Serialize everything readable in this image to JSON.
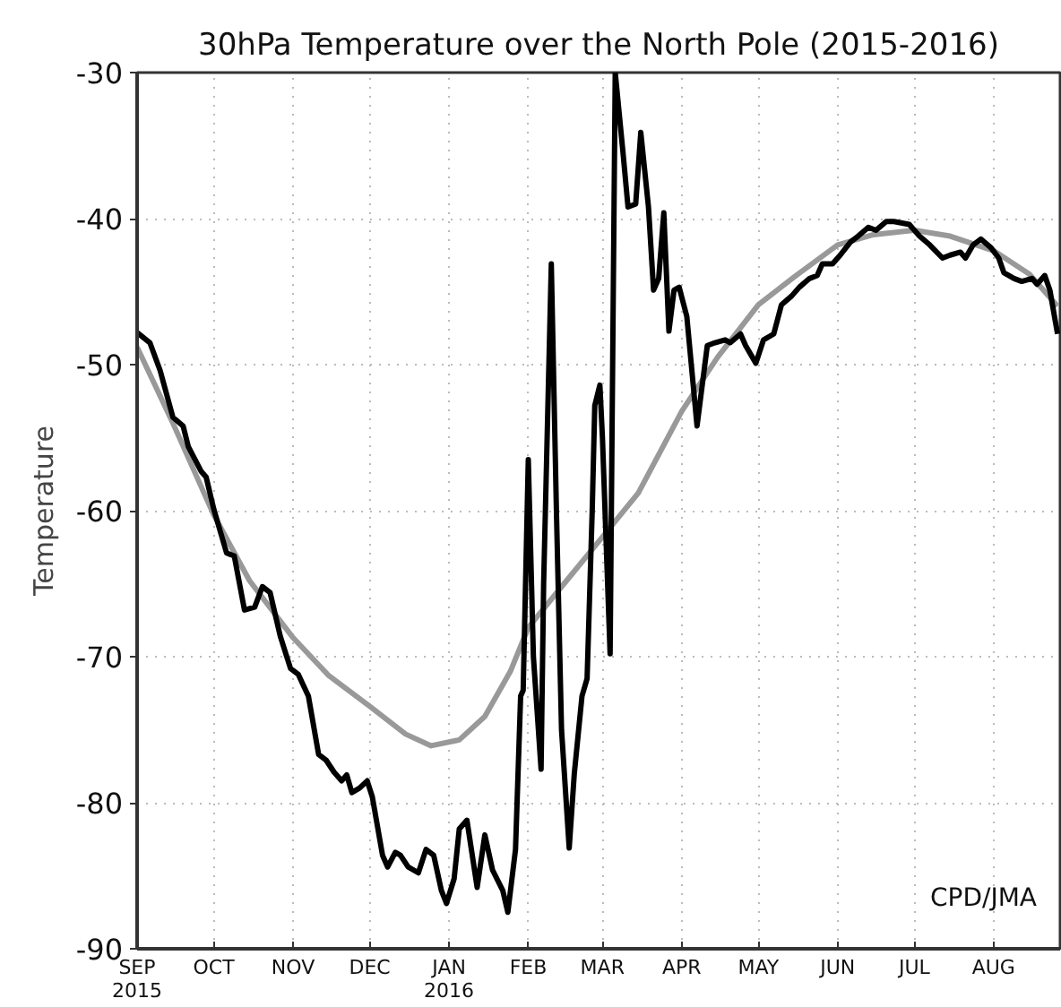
{
  "chart_data": {
    "type": "line",
    "title": "30hPa Temperature over the North Pole (2015-2016)",
    "ylabel": "Temperature",
    "annotations": [
      "CPD/JMA"
    ],
    "xlim": [
      "2015-09-01",
      "2016-08-27"
    ],
    "ylim": [
      -90,
      -30
    ],
    "yticks": [
      -90,
      -80,
      -70,
      -60,
      -50,
      -40,
      -30
    ],
    "xticks": [
      {
        "value": "2015-09-01",
        "label": "SEP\n2015"
      },
      {
        "value": "2015-10-01",
        "label": "OCT"
      },
      {
        "value": "2015-11-01",
        "label": "NOV"
      },
      {
        "value": "2015-12-01",
        "label": "DEC"
      },
      {
        "value": "2016-01-01",
        "label": "JAN\n2016"
      },
      {
        "value": "2016-02-01",
        "label": "FEB"
      },
      {
        "value": "2016-03-01",
        "label": "MAR"
      },
      {
        "value": "2016-04-01",
        "label": "APR"
      },
      {
        "value": "2016-05-01",
        "label": "MAY"
      },
      {
        "value": "2016-06-01",
        "label": "JUN"
      },
      {
        "value": "2016-07-01",
        "label": "JUL"
      },
      {
        "value": "2016-08-01",
        "label": "AUG"
      }
    ],
    "grid": true,
    "marker": "none",
    "line_style": "solid",
    "series": [
      {
        "color": "#999999",
        "x": [
          "2015-09-01",
          "2015-09-15",
          "2015-10-01",
          "2015-10-15",
          "2015-11-01",
          "2015-11-15",
          "2015-12-01",
          "2015-12-15",
          "2015-12-25",
          "2016-01-05",
          "2016-01-15",
          "2016-01-25",
          "2016-02-01",
          "2016-02-15",
          "2016-03-01",
          "2016-03-15",
          "2016-04-01",
          "2016-04-15",
          "2016-05-01",
          "2016-05-15",
          "2016-06-01",
          "2016-06-15",
          "2016-07-01",
          "2016-07-15",
          "2016-08-01",
          "2016-08-15",
          "2016-08-26"
        ],
        "values": [
          -48.8,
          -54.0,
          -60.3,
          -64.8,
          -68.7,
          -71.3,
          -73.4,
          -75.3,
          -76.1,
          -75.7,
          -74.1,
          -71.0,
          -68.0,
          -65.0,
          -61.8,
          -58.8,
          -53.2,
          -49.5,
          -45.9,
          -44.0,
          -41.8,
          -41.1,
          -40.8,
          -41.2,
          -42.2,
          -43.8,
          -46.0
        ]
      },
      {
        "color": "#000000",
        "x": [
          "2015-09-01",
          "2015-09-06",
          "2015-09-10",
          "2015-09-15",
          "2015-09-19",
          "2015-09-21",
          "2015-09-26",
          "2015-09-28",
          "2015-10-01",
          "2015-10-06",
          "2015-10-09",
          "2015-10-13",
          "2015-10-17",
          "2015-10-20",
          "2015-10-23",
          "2015-10-27",
          "2015-10-31",
          "2015-11-03",
          "2015-11-07",
          "2015-11-11",
          "2015-11-14",
          "2015-11-17",
          "2015-11-20",
          "2015-11-22",
          "2015-11-24",
          "2015-11-27",
          "2015-11-30",
          "2015-12-02",
          "2015-12-06",
          "2015-12-08",
          "2015-12-11",
          "2015-12-13",
          "2015-12-16",
          "2015-12-20",
          "2015-12-23",
          "2015-12-26",
          "2015-12-29",
          "2015-12-31",
          "2016-01-03",
          "2016-01-05",
          "2016-01-08",
          "2016-01-12",
          "2016-01-15",
          "2016-01-18",
          "2016-01-22",
          "2016-01-24",
          "2016-01-27",
          "2016-01-29",
          "2016-01-30",
          "2016-02-01",
          "2016-02-03",
          "2016-02-06",
          "2016-02-07",
          "2016-02-10",
          "2016-02-12",
          "2016-02-14",
          "2016-02-17",
          "2016-02-19",
          "2016-02-22",
          "2016-02-24",
          "2016-02-26",
          "2016-02-27",
          "2016-02-29",
          "2016-03-01",
          "2016-03-04",
          "2016-03-06",
          "2016-03-09",
          "2016-03-11",
          "2016-03-14",
          "2016-03-16",
          "2016-03-19",
          "2016-03-21",
          "2016-03-23",
          "2016-03-25",
          "2016-03-27",
          "2016-03-29",
          "2016-03-31",
          "2016-04-03",
          "2016-04-07",
          "2016-04-11",
          "2016-04-14",
          "2016-04-18",
          "2016-04-20",
          "2016-04-24",
          "2016-04-26",
          "2016-04-30",
          "2016-05-03",
          "2016-05-07",
          "2016-05-10",
          "2016-05-14",
          "2016-05-17",
          "2016-05-21",
          "2016-05-24",
          "2016-05-26",
          "2016-05-30",
          "2016-06-02",
          "2016-06-06",
          "2016-06-09",
          "2016-06-13",
          "2016-06-16",
          "2016-06-20",
          "2016-06-23",
          "2016-06-29",
          "2016-07-03",
          "2016-07-07",
          "2016-07-12",
          "2016-07-15",
          "2016-07-19",
          "2016-07-21",
          "2016-07-24",
          "2016-07-27",
          "2016-07-31",
          "2016-08-03",
          "2016-08-05",
          "2016-08-09",
          "2016-08-12",
          "2016-08-16",
          "2016-08-18",
          "2016-08-21",
          "2016-08-23",
          "2016-08-26"
        ],
        "values": [
          -47.8,
          -48.5,
          -50.4,
          -53.6,
          -54.2,
          -55.6,
          -57.3,
          -57.7,
          -59.9,
          -62.9,
          -63.1,
          -66.8,
          -66.6,
          -65.2,
          -65.6,
          -68.6,
          -70.8,
          -71.2,
          -72.7,
          -76.7,
          -77.1,
          -77.9,
          -78.5,
          -78.1,
          -79.3,
          -79.0,
          -78.5,
          -79.6,
          -83.6,
          -84.4,
          -83.4,
          -83.6,
          -84.4,
          -84.8,
          -83.2,
          -83.6,
          -86.0,
          -86.9,
          -85.2,
          -81.8,
          -81.2,
          -85.8,
          -82.2,
          -84.6,
          -86.0,
          -87.5,
          -83.2,
          -72.7,
          -72.3,
          -56.5,
          -70.0,
          -77.7,
          -65.0,
          -43.1,
          -60.0,
          -75.0,
          -83.1,
          -78.0,
          -72.7,
          -71.5,
          -60.0,
          -52.8,
          -51.4,
          -55.0,
          -69.8,
          -30.0,
          -35.4,
          -39.2,
          -39.0,
          -34.1,
          -39.2,
          -44.9,
          -44.1,
          -39.6,
          -47.7,
          -44.9,
          -44.7,
          -46.7,
          -54.2,
          -48.7,
          -48.5,
          -48.3,
          -48.5,
          -47.9,
          -48.7,
          -49.9,
          -48.3,
          -47.9,
          -45.9,
          -45.3,
          -44.7,
          -44.1,
          -43.9,
          -43.1,
          -43.1,
          -42.5,
          -41.6,
          -41.2,
          -40.6,
          -40.8,
          -40.2,
          -40.2,
          -40.4,
          -41.2,
          -41.8,
          -42.7,
          -42.5,
          -42.3,
          -42.7,
          -41.8,
          -41.4,
          -42.0,
          -42.7,
          -43.7,
          -44.1,
          -44.3,
          -44.1,
          -44.5,
          -43.9,
          -44.9,
          -47.9
        ]
      }
    ]
  }
}
